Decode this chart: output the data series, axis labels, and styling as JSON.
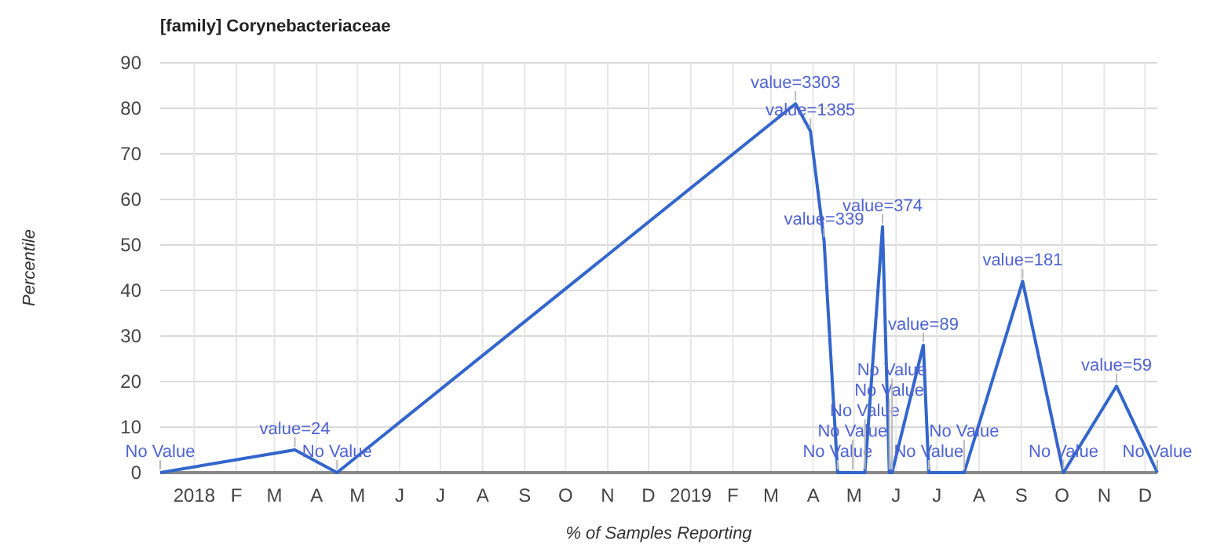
{
  "chart_data": {
    "type": "line",
    "title": "[family] Corynebacteriaceae",
    "xlabel": "% of Samples Reporting",
    "ylabel": "Percentile",
    "x": [
      "2017-12-07",
      "2018-03-16",
      "2018-04-16",
      "2019-03-19",
      "2019-03-30",
      "2019-04-09",
      "2019-04-19",
      "2019-04-30",
      "2019-05-09",
      "2019-05-22",
      "2019-05-27",
      "2019-05-29",
      "2019-06-21",
      "2019-06-25",
      "2019-07-21",
      "2019-09-02",
      "2019-10-02",
      "2019-11-10",
      "2019-12-10"
    ],
    "series": [
      {
        "color": "#3366cc",
        "values": [
          0,
          5,
          0,
          81,
          75,
          51,
          0,
          0,
          0,
          54,
          0,
          0,
          28,
          0,
          0,
          42,
          0,
          19,
          0
        ]
      }
    ],
    "annotations": [
      {
        "text": "No Value",
        "x": "2017-12-07",
        "y": 0
      },
      {
        "text": "value=24",
        "x": "2018-03-16",
        "y": 5
      },
      {
        "text": "No Value",
        "x": "2018-04-16",
        "y": 0
      },
      {
        "text": "value=3303",
        "x": "2019-03-19",
        "y": 81
      },
      {
        "text": "value=1385",
        "x": "2019-03-30",
        "y": 75
      },
      {
        "text": "value=339",
        "x": "2019-04-09",
        "y": 51
      },
      {
        "text": "No Value",
        "x": "2019-04-19",
        "y": 0
      },
      {
        "text": "No Value",
        "x": "2019-04-30",
        "y": 0
      },
      {
        "text": "No Value",
        "x": "2019-05-09",
        "y": 0
      },
      {
        "text": "value=374",
        "x": "2019-05-22",
        "y": 54
      },
      {
        "text": "No Value",
        "x": "2019-05-27",
        "y": 0
      },
      {
        "text": "No Value",
        "x": "2019-05-29",
        "y": 0
      },
      {
        "text": "value=89",
        "x": "2019-06-21",
        "y": 28
      },
      {
        "text": "No Value",
        "x": "2019-06-25",
        "y": 0
      },
      {
        "text": "No Value",
        "x": "2019-07-21",
        "y": 0
      },
      {
        "text": "value=181",
        "x": "2019-09-02",
        "y": 42
      },
      {
        "text": "No Value",
        "x": "2019-10-02",
        "y": 0
      },
      {
        "text": "value=59",
        "x": "2019-11-10",
        "y": 19
      },
      {
        "text": "No Value",
        "x": "2019-12-10",
        "y": 0
      }
    ],
    "xlim": [
      "2017-12-07",
      "2019-12-10"
    ],
    "xticks": [
      {
        "value": "2018-01-01",
        "label": "2018"
      },
      {
        "value": "2018-02-01",
        "label": "F"
      },
      {
        "value": "2018-03-01",
        "label": "M"
      },
      {
        "value": "2018-04-01",
        "label": "A"
      },
      {
        "value": "2018-05-01",
        "label": "M"
      },
      {
        "value": "2018-06-01",
        "label": "J"
      },
      {
        "value": "2018-07-01",
        "label": "J"
      },
      {
        "value": "2018-08-01",
        "label": "A"
      },
      {
        "value": "2018-09-01",
        "label": "S"
      },
      {
        "value": "2018-10-01",
        "label": "O"
      },
      {
        "value": "2018-11-01",
        "label": "N"
      },
      {
        "value": "2018-12-01",
        "label": "D"
      },
      {
        "value": "2019-01-01",
        "label": "2019"
      },
      {
        "value": "2019-02-01",
        "label": "F"
      },
      {
        "value": "2019-03-01",
        "label": "M"
      },
      {
        "value": "2019-04-01",
        "label": "A"
      },
      {
        "value": "2019-05-01",
        "label": "M"
      },
      {
        "value": "2019-06-01",
        "label": "J"
      },
      {
        "value": "2019-07-01",
        "label": "J"
      },
      {
        "value": "2019-08-01",
        "label": "A"
      },
      {
        "value": "2019-09-01",
        "label": "S"
      },
      {
        "value": "2019-10-01",
        "label": "O"
      },
      {
        "value": "2019-11-01",
        "label": "N"
      },
      {
        "value": "2019-12-01",
        "label": "D"
      }
    ],
    "ylim": [
      0,
      90
    ],
    "yticks": [
      0,
      10,
      20,
      30,
      40,
      50,
      60,
      70,
      80,
      90
    ],
    "grid": true,
    "marker": "none",
    "line_style": "solid"
  }
}
